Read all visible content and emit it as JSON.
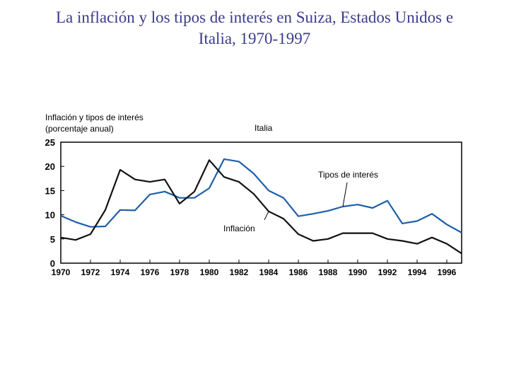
{
  "page": {
    "title_line1": "La inflación y los tipos de interés en Suiza, Estados Unidos e",
    "title_line2": "Italia, 1970-1997"
  },
  "chart_data": {
    "type": "line",
    "title": "La inflación y los tipos de interés en Suiza, Estados Unidos e Italia, 1970-1997",
    "ylabel_line1": "Inflación y tipos de interés",
    "ylabel_line2": "(porcentaje anual)",
    "subtitle": "Italia",
    "xlim": [
      1970,
      1997
    ],
    "ylim": [
      0,
      25
    ],
    "xticks": [
      1970,
      1972,
      1974,
      1976,
      1978,
      1980,
      1982,
      1984,
      1986,
      1988,
      1990,
      1992,
      1994,
      1996
    ],
    "yticks": [
      0,
      5,
      10,
      15,
      20,
      25
    ],
    "colors": {
      "tipos": "#1f5fa8",
      "inflacion": "#111111"
    },
    "series": [
      {
        "name": "Tipos de interés",
        "x": [
          1970,
          1971,
          1972,
          1973,
          1974,
          1975,
          1976,
          1977,
          1978,
          1979,
          1980,
          1981,
          1982,
          1983,
          1984,
          1985,
          1986,
          1987,
          1988,
          1989,
          1990,
          1991,
          1992,
          1993,
          1994,
          1995,
          1996,
          1997
        ],
        "values": [
          9.8,
          8.5,
          7.5,
          7.6,
          11.0,
          10.9,
          14.2,
          14.8,
          13.5,
          13.5,
          15.5,
          21.5,
          21.0,
          18.5,
          15.0,
          13.5,
          9.7,
          10.2,
          10.8,
          11.7,
          12.1,
          11.4,
          12.9,
          8.2,
          8.7,
          10.2,
          8.0,
          6.3
        ]
      },
      {
        "name": "Inflación",
        "x": [
          1970,
          1971,
          1972,
          1973,
          1974,
          1975,
          1976,
          1977,
          1978,
          1979,
          1980,
          1981,
          1982,
          1983,
          1984,
          1985,
          1986,
          1987,
          1988,
          1989,
          1990,
          1991,
          1992,
          1993,
          1994,
          1995,
          1996,
          1997
        ],
        "values": [
          5.3,
          4.8,
          6.0,
          11.0,
          19.3,
          17.3,
          16.8,
          17.3,
          12.3,
          14.8,
          21.3,
          17.8,
          16.8,
          14.3,
          10.7,
          9.2,
          6.0,
          4.6,
          5.0,
          6.2,
          6.2,
          6.2,
          5.0,
          4.6,
          4.0,
          5.3,
          4.0,
          2.0
        ]
      }
    ],
    "annotations": [
      {
        "text": "Tipos de interés",
        "target_series": "Tipos de interés",
        "target_x": 1989
      },
      {
        "text": "Inflación",
        "target_series": "Inflación",
        "target_x": 1984
      }
    ]
  }
}
